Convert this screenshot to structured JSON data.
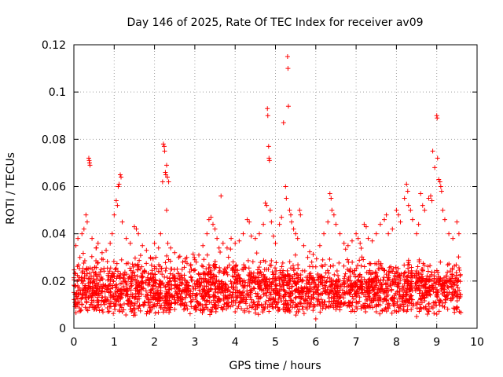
{
  "chart_data": {
    "type": "scatter",
    "title": "Day 146 of 2025, Rate Of TEC Index for receiver av09",
    "xlabel": "GPS time / hours",
    "ylabel": "ROTI / TECUs",
    "xlim": [
      0,
      10
    ],
    "ylim": [
      0,
      0.12
    ],
    "x_ticks": [
      0,
      1,
      2,
      3,
      4,
      5,
      6,
      7,
      8,
      9,
      10
    ],
    "y_ticks": [
      0,
      0.02,
      0.04,
      0.06,
      0.08,
      0.1,
      0.12
    ],
    "x_tick_labels": [
      "0",
      "1",
      "2",
      "3",
      "4",
      "5",
      "6",
      "7",
      "8",
      "9",
      "10"
    ],
    "y_tick_labels": [
      "0",
      "0.02",
      "0.04",
      "0.06",
      "0.08",
      "0.1",
      "0.12"
    ],
    "grid": true,
    "marker": "+",
    "marker_color": "#ff0000",
    "x_range_of_data": [
      0,
      9.6
    ],
    "typical_band": [
      0.005,
      0.035
    ],
    "series": [
      {
        "name": "ROTI",
        "points": [
          [
            0.05,
            0.035
          ],
          [
            0.1,
            0.038
          ],
          [
            0.15,
            0.03
          ],
          [
            0.2,
            0.04
          ],
          [
            0.25,
            0.042
          ],
          [
            0.3,
            0.048
          ],
          [
            0.33,
            0.045
          ],
          [
            0.37,
            0.072
          ],
          [
            0.38,
            0.071
          ],
          [
            0.39,
            0.07
          ],
          [
            0.4,
            0.069
          ],
          [
            0.45,
            0.038
          ],
          [
            0.55,
            0.034
          ],
          [
            0.6,
            0.036
          ],
          [
            0.7,
            0.032
          ],
          [
            0.8,
            0.033
          ],
          [
            0.9,
            0.036
          ],
          [
            0.95,
            0.04
          ],
          [
            1.0,
            0.048
          ],
          [
            1.05,
            0.054
          ],
          [
            1.08,
            0.052
          ],
          [
            1.1,
            0.06
          ],
          [
            1.12,
            0.061
          ],
          [
            1.15,
            0.065
          ],
          [
            1.17,
            0.064
          ],
          [
            1.2,
            0.045
          ],
          [
            1.3,
            0.038
          ],
          [
            1.4,
            0.036
          ],
          [
            1.5,
            0.043
          ],
          [
            1.55,
            0.042
          ],
          [
            1.6,
            0.04
          ],
          [
            1.7,
            0.035
          ],
          [
            1.8,
            0.033
          ],
          [
            1.9,
            0.03
          ],
          [
            2.0,
            0.036
          ],
          [
            2.1,
            0.034
          ],
          [
            2.15,
            0.04
          ],
          [
            2.2,
            0.062
          ],
          [
            2.22,
            0.078
          ],
          [
            2.24,
            0.077
          ],
          [
            2.25,
            0.075
          ],
          [
            2.27,
            0.066
          ],
          [
            2.28,
            0.065
          ],
          [
            2.3,
            0.069
          ],
          [
            2.32,
            0.064
          ],
          [
            2.35,
            0.062
          ],
          [
            2.3,
            0.05
          ],
          [
            2.33,
            0.036
          ],
          [
            2.4,
            0.034
          ],
          [
            2.5,
            0.032
          ],
          [
            2.6,
            0.03
          ],
          [
            2.7,
            0.028
          ],
          [
            2.8,
            0.03
          ],
          [
            2.9,
            0.027
          ],
          [
            3.0,
            0.029
          ],
          [
            3.1,
            0.031
          ],
          [
            3.2,
            0.035
          ],
          [
            3.3,
            0.04
          ],
          [
            3.35,
            0.046
          ],
          [
            3.4,
            0.047
          ],
          [
            3.45,
            0.044
          ],
          [
            3.5,
            0.042
          ],
          [
            3.55,
            0.038
          ],
          [
            3.6,
            0.034
          ],
          [
            3.65,
            0.056
          ],
          [
            3.7,
            0.036
          ],
          [
            3.8,
            0.034
          ],
          [
            3.9,
            0.038
          ],
          [
            4.0,
            0.036
          ],
          [
            4.1,
            0.037
          ],
          [
            4.2,
            0.04
          ],
          [
            4.3,
            0.046
          ],
          [
            4.35,
            0.045
          ],
          [
            4.4,
            0.039
          ],
          [
            4.5,
            0.038
          ],
          [
            4.6,
            0.04
          ],
          [
            4.7,
            0.044
          ],
          [
            4.75,
            0.053
          ],
          [
            4.78,
            0.052
          ],
          [
            4.8,
            0.093
          ],
          [
            4.81,
            0.09
          ],
          [
            4.83,
            0.077
          ],
          [
            4.84,
            0.072
          ],
          [
            4.85,
            0.071
          ],
          [
            4.87,
            0.05
          ],
          [
            4.9,
            0.045
          ],
          [
            4.95,
            0.039
          ],
          [
            5.0,
            0.036
          ],
          [
            5.1,
            0.044
          ],
          [
            5.15,
            0.047
          ],
          [
            5.2,
            0.087
          ],
          [
            5.25,
            0.06
          ],
          [
            5.27,
            0.055
          ],
          [
            5.3,
            0.115
          ],
          [
            5.31,
            0.11
          ],
          [
            5.32,
            0.094
          ],
          [
            5.35,
            0.05
          ],
          [
            5.38,
            0.048
          ],
          [
            5.4,
            0.045
          ],
          [
            5.45,
            0.042
          ],
          [
            5.5,
            0.04
          ],
          [
            5.55,
            0.038
          ],
          [
            5.6,
            0.05
          ],
          [
            5.62,
            0.048
          ],
          [
            5.7,
            0.035
          ],
          [
            5.8,
            0.03
          ],
          [
            5.9,
            0.028
          ],
          [
            6.0,
            0.026
          ],
          [
            6.1,
            0.035
          ],
          [
            6.2,
            0.04
          ],
          [
            6.3,
            0.045
          ],
          [
            6.35,
            0.057
          ],
          [
            6.38,
            0.055
          ],
          [
            6.4,
            0.05
          ],
          [
            6.45,
            0.048
          ],
          [
            6.5,
            0.044
          ],
          [
            6.6,
            0.04
          ],
          [
            6.7,
            0.036
          ],
          [
            6.8,
            0.035
          ],
          [
            6.9,
            0.037
          ],
          [
            7.0,
            0.04
          ],
          [
            7.05,
            0.038
          ],
          [
            7.1,
            0.036
          ],
          [
            7.2,
            0.044
          ],
          [
            7.25,
            0.043
          ],
          [
            7.3,
            0.038
          ],
          [
            7.4,
            0.037
          ],
          [
            7.5,
            0.04
          ],
          [
            7.6,
            0.044
          ],
          [
            7.7,
            0.046
          ],
          [
            7.75,
            0.048
          ],
          [
            7.8,
            0.04
          ],
          [
            7.9,
            0.042
          ],
          [
            8.0,
            0.05
          ],
          [
            8.05,
            0.048
          ],
          [
            8.1,
            0.045
          ],
          [
            8.2,
            0.055
          ],
          [
            8.25,
            0.061
          ],
          [
            8.28,
            0.058
          ],
          [
            8.3,
            0.052
          ],
          [
            8.35,
            0.05
          ],
          [
            8.4,
            0.046
          ],
          [
            8.5,
            0.04
          ],
          [
            8.55,
            0.044
          ],
          [
            8.6,
            0.057
          ],
          [
            8.65,
            0.052
          ],
          [
            8.7,
            0.05
          ],
          [
            8.8,
            0.055
          ],
          [
            8.85,
            0.056
          ],
          [
            8.88,
            0.054
          ],
          [
            8.9,
            0.075
          ],
          [
            8.95,
            0.068
          ],
          [
            9.0,
            0.09
          ],
          [
            9.01,
            0.089
          ],
          [
            9.02,
            0.072
          ],
          [
            9.05,
            0.063
          ],
          [
            9.08,
            0.062
          ],
          [
            9.1,
            0.06
          ],
          [
            9.12,
            0.058
          ],
          [
            9.15,
            0.05
          ],
          [
            9.2,
            0.046
          ],
          [
            9.3,
            0.04
          ],
          [
            9.4,
            0.038
          ],
          [
            9.5,
            0.045
          ],
          [
            9.55,
            0.04
          ],
          [
            0.2,
            0.01
          ],
          [
            0.5,
            0.008
          ],
          [
            0.8,
            0.012
          ],
          [
            1.2,
            0.007
          ],
          [
            1.6,
            0.009
          ],
          [
            2.0,
            0.01
          ],
          [
            2.5,
            0.008
          ],
          [
            3.0,
            0.009
          ],
          [
            3.5,
            0.01
          ],
          [
            4.0,
            0.007
          ],
          [
            4.5,
            0.008
          ],
          [
            5.0,
            0.009
          ],
          [
            5.5,
            0.01
          ],
          [
            6.0,
            0.004
          ],
          [
            6.5,
            0.008
          ],
          [
            7.0,
            0.009
          ],
          [
            7.5,
            0.01
          ],
          [
            8.0,
            0.007
          ],
          [
            8.5,
            0.005
          ],
          [
            9.0,
            0.006
          ],
          [
            9.5,
            0.008
          ]
        ]
      }
    ]
  }
}
